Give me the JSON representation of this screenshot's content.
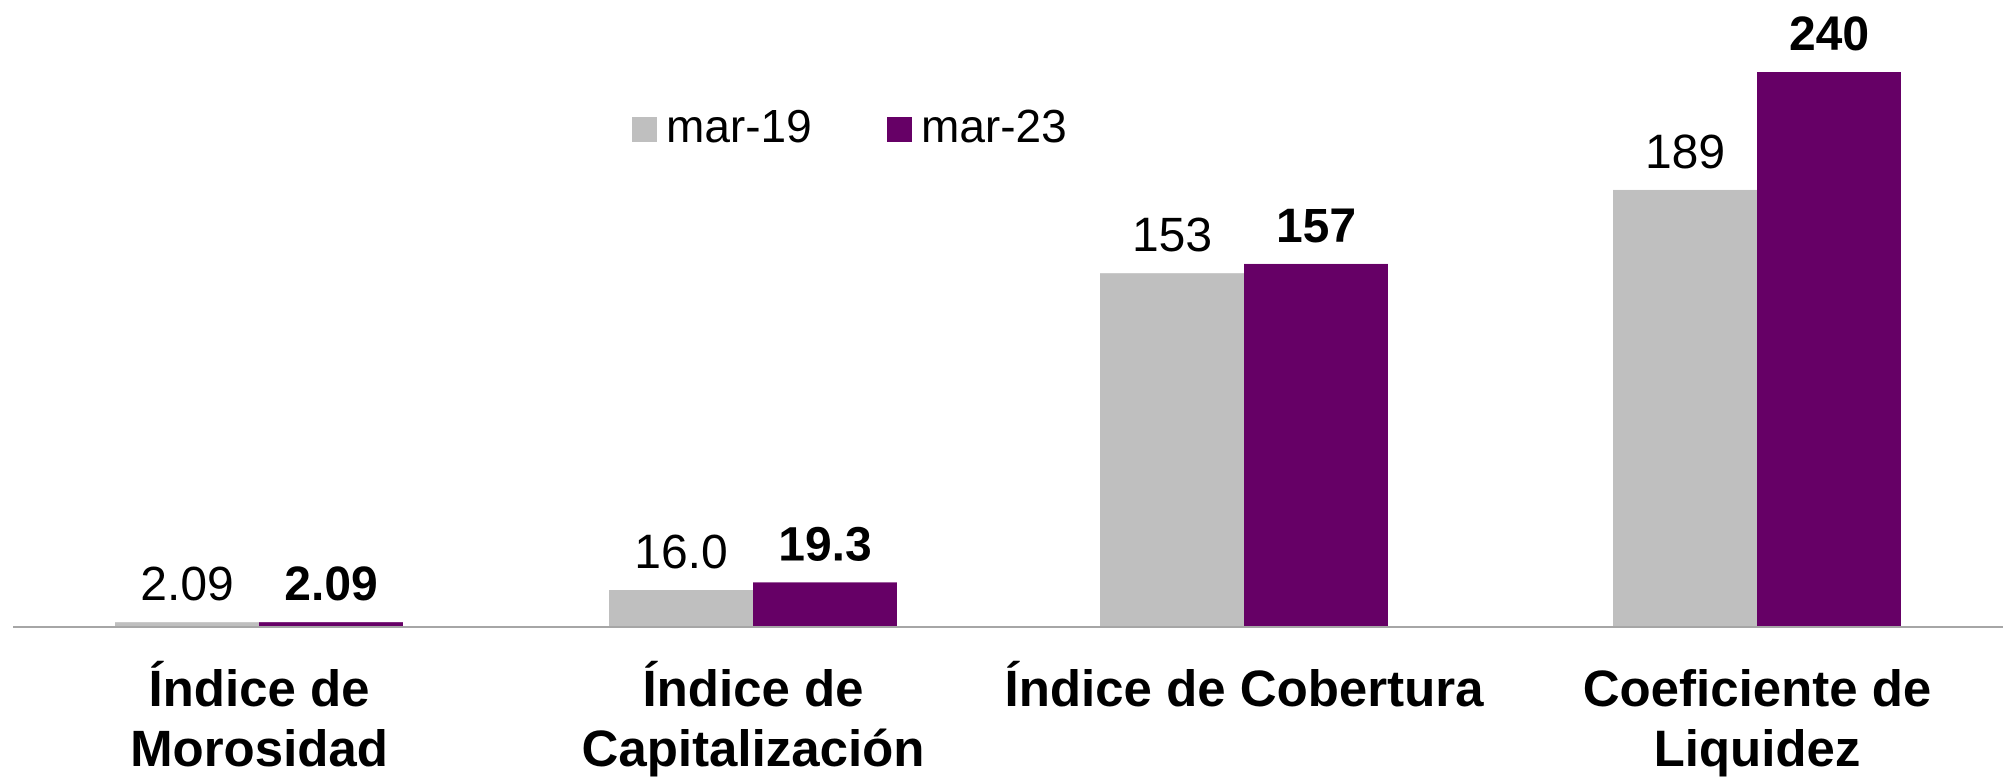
{
  "chart_data": {
    "type": "bar",
    "categories": [
      [
        "Índice de",
        "Morosidad"
      ],
      [
        "Índice de",
        "Capitalización"
      ],
      [
        "Índice de Cobertura"
      ],
      [
        "Coeficiente de",
        "Liquidez"
      ]
    ],
    "series": [
      {
        "name": "mar-19",
        "color": "#bfbfbf",
        "values": [
          2.09,
          16.0,
          153,
          189
        ],
        "value_labels": [
          "2.09",
          "16.0",
          "153",
          "189"
        ]
      },
      {
        "name": "mar-23",
        "color": "#660066",
        "values": [
          2.09,
          19.3,
          157,
          240
        ],
        "value_labels": [
          "2.09",
          "19.3",
          "157",
          "240"
        ]
      }
    ],
    "ylim": [
      0,
      240
    ],
    "grid": false,
    "legend": "top"
  }
}
